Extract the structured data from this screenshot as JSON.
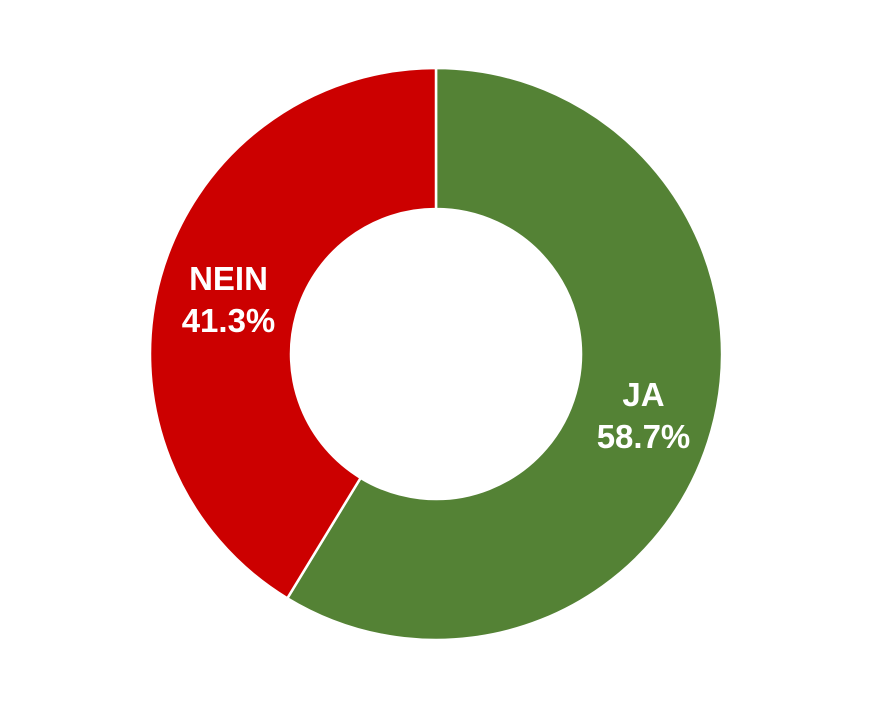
{
  "chart_data": {
    "type": "pie",
    "variant": "donut",
    "slices": [
      {
        "label": "JA",
        "value": 58.7,
        "value_label": "58.7%",
        "color": "#548235"
      },
      {
        "label": "NEIN",
        "value": 41.3,
        "value_label": "41.3%",
        "color": "#cc0000"
      }
    ],
    "start_angle": "top (12 o'clock), clockwise",
    "legend": "none"
  }
}
